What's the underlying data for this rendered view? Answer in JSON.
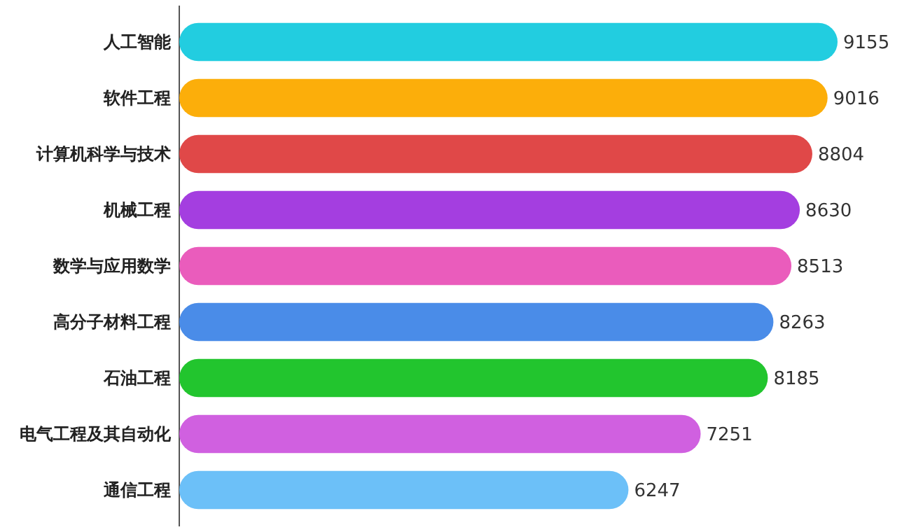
{
  "chart_data": {
    "type": "bar",
    "orientation": "horizontal",
    "categories": [
      "人工智能",
      "软件工程",
      "计算机科学与技术",
      "机械工程",
      "数学与应用数学",
      "高分子材料工程",
      "石油工程",
      "电气工程及其自动化",
      "通信工程"
    ],
    "values": [
      9155,
      9016,
      8804,
      8630,
      8513,
      8263,
      8185,
      7251,
      6247
    ],
    "colors": [
      "#22cde0",
      "#fcae0a",
      "#e04848",
      "#a43ee0",
      "#ea5cbc",
      "#4a8ce8",
      "#22c52e",
      "#d060e0",
      "#6cc0f8"
    ],
    "data_labels": true
  }
}
